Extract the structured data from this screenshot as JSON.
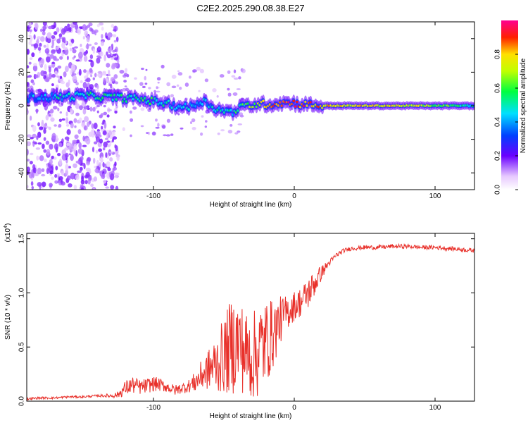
{
  "title": "C2E2.2025.290.08.38.E27",
  "colors": {
    "snr_line": "#e8302a",
    "frame": "#000000",
    "background": "#ffffff"
  },
  "chart_data": [
    {
      "type": "heatmap",
      "title": "C2E2.2025.290.08.38.E27",
      "xlabel": "Height of straight line (km)",
      "ylabel": "Frequency (Hz)",
      "xlim": [
        -190,
        128
      ],
      "ylim": [
        -50,
        50
      ],
      "xticks": [
        -100,
        0,
        100
      ],
      "xtick_labels": [
        "-100",
        "0",
        "100"
      ],
      "yticks": [
        -40,
        -20,
        0,
        20,
        40
      ],
      "ytick_labels": [
        "-40",
        "-20",
        "0",
        "20",
        "40"
      ],
      "colormap": "rainbow",
      "colorbar": {
        "label": "Normalized spectral amplitude",
        "range": [
          0.0,
          1.0
        ],
        "ticks": [
          0.0,
          0.2,
          0.4,
          0.6,
          0.8
        ],
        "tick_labels": [
          "0.0",
          "0.2",
          "0.4",
          "0.6",
          "0.8"
        ]
      },
      "ridge": {
        "description": "dominant frequency ridge vs height",
        "x": [
          -190,
          -170,
          -150,
          -130,
          -110,
          -95,
          -85,
          -75,
          -65,
          -55,
          -45,
          -35,
          -25,
          -15,
          -5,
          5,
          20,
          50,
          80,
          110,
          128
        ],
        "y": [
          5,
          5,
          6,
          5,
          4,
          2,
          0,
          -1,
          3,
          -2,
          -4,
          0,
          1,
          1,
          2,
          1,
          0,
          0,
          0,
          0,
          0
        ],
        "amplitude": [
          0.35,
          0.45,
          0.5,
          0.55,
          0.55,
          0.5,
          0.45,
          0.45,
          0.45,
          0.45,
          0.5,
          0.6,
          0.75,
          0.85,
          0.9,
          0.85,
          0.8,
          0.75,
          0.75,
          0.6,
          0.45
        ]
      }
    },
    {
      "type": "line",
      "xlabel": "Height of straight line (km)",
      "ylabel": "SNR (10 * v/v)",
      "y_multiplier": "(x10",
      "y_multiplier_exp": "4",
      "y_multiplier_close": ")",
      "xlim": [
        -190,
        128
      ],
      "ylim": [
        0.0,
        1.55
      ],
      "xticks": [
        -100,
        0,
        100
      ],
      "xtick_labels": [
        "-100",
        "0",
        "100"
      ],
      "yticks": [
        0.0,
        0.5,
        1.0,
        1.5
      ],
      "ytick_labels": [
        "0.0",
        "0.5",
        "1.0",
        "1.5"
      ],
      "series": [
        {
          "name": "SNR",
          "x": [
            -190,
            -180,
            -170,
            -160,
            -150,
            -140,
            -130,
            -125,
            -120,
            -115,
            -110,
            -105,
            -100,
            -95,
            -90,
            -85,
            -80,
            -75,
            -70,
            -65,
            -60,
            -55,
            -50,
            -45,
            -40,
            -35,
            -30,
            -25,
            -20,
            -15,
            -10,
            -5,
            0,
            5,
            10,
            15,
            20,
            25,
            30,
            35,
            40,
            50,
            60,
            70,
            80,
            90,
            100,
            110,
            120,
            128
          ],
          "y": [
            0.02,
            0.03,
            0.03,
            0.04,
            0.04,
            0.05,
            0.05,
            0.06,
            0.12,
            0.15,
            0.13,
            0.14,
            0.16,
            0.15,
            0.13,
            0.1,
            0.12,
            0.14,
            0.18,
            0.25,
            0.3,
            0.35,
            0.42,
            0.5,
            0.55,
            0.45,
            0.4,
            0.48,
            0.55,
            0.62,
            0.75,
            0.82,
            0.88,
            0.92,
            1.0,
            1.1,
            1.2,
            1.28,
            1.35,
            1.39,
            1.41,
            1.42,
            1.42,
            1.43,
            1.43,
            1.42,
            1.42,
            1.41,
            1.4,
            1.39
          ],
          "noise": [
            0.01,
            0.01,
            0.01,
            0.01,
            0.01,
            0.01,
            0.02,
            0.03,
            0.07,
            0.08,
            0.07,
            0.07,
            0.07,
            0.06,
            0.05,
            0.05,
            0.05,
            0.06,
            0.1,
            0.15,
            0.2,
            0.28,
            0.35,
            0.45,
            0.45,
            0.4,
            0.4,
            0.45,
            0.4,
            0.32,
            0.22,
            0.16,
            0.14,
            0.14,
            0.15,
            0.12,
            0.06,
            0.03,
            0.025,
            0.02,
            0.02,
            0.02,
            0.02,
            0.02,
            0.02,
            0.02,
            0.02,
            0.02,
            0.02,
            0.02
          ]
        }
      ]
    }
  ]
}
